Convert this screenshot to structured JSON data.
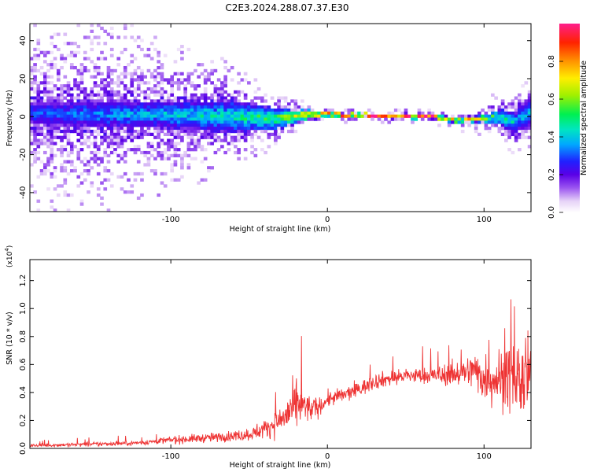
{
  "title": "C2E3.2024.288.07.37.E30",
  "chart_data": [
    {
      "type": "heatmap",
      "xlabel": "Height of straight line (km)",
      "ylabel": "Frequency (Hz)",
      "xlim": [
        -190,
        130
      ],
      "ylim": [
        -50,
        49
      ],
      "xticks": [
        -100,
        0,
        100
      ],
      "xtick_labels": [
        "-100",
        "0",
        "100"
      ],
      "yticks": [
        -40,
        -20,
        0,
        20,
        40
      ],
      "ytick_labels": [
        "-40",
        "-20",
        "0",
        "20",
        "40"
      ],
      "colorbar": {
        "label": "Normalized spectral amplitude",
        "range": [
          0.0,
          1.0
        ],
        "ticks": [
          0.0,
          0.2,
          0.4,
          0.6,
          0.8
        ],
        "tick_labels": [
          "0.0",
          "0.2",
          "0.4",
          "0.6",
          "0.8"
        ]
      },
      "trace": {
        "x": [
          -190,
          -150,
          -100,
          -60,
          -30,
          -15,
          0,
          20,
          50,
          70,
          80,
          90,
          100,
          110,
          120,
          130
        ],
        "center_freq": [
          2,
          1,
          1,
          0,
          -1,
          1,
          1,
          1,
          0,
          0,
          -2,
          -2,
          -1,
          0,
          -3,
          2
        ],
        "core_halfwidth": [
          6,
          7,
          7,
          8,
          5,
          2.5,
          1.2,
          1,
          1,
          1,
          1.2,
          1.2,
          2,
          4,
          6,
          7
        ],
        "peak_amplitude": [
          0.3,
          0.35,
          0.4,
          0.45,
          0.55,
          0.75,
          0.95,
          0.95,
          0.95,
          1.0,
          0.85,
          0.8,
          0.6,
          0.5,
          0.4,
          0.35
        ],
        "scatter_spread": [
          50,
          45,
          35,
          20,
          10,
          5,
          3,
          3,
          3,
          3,
          4,
          5,
          7,
          10,
          12,
          12
        ]
      }
    },
    {
      "type": "line",
      "xlabel": "Height of straight line (km)",
      "ylabel": "SNR (10 * v/v)",
      "y_multiplier_label": "(x10",
      "y_multiplier_exp": "4",
      "y_multiplier_close": ")",
      "xlim": [
        -190,
        130
      ],
      "ylim": [
        0,
        1.35
      ],
      "xticks": [
        -100,
        0,
        100
      ],
      "xtick_labels": [
        "-100",
        "0",
        "100"
      ],
      "yticks": [
        0.0,
        0.2,
        0.4,
        0.6,
        0.8,
        1.0,
        1.2
      ],
      "ytick_labels": [
        "0.0",
        "0.2",
        "0.4",
        "0.6",
        "0.8",
        "1.0",
        "1.2"
      ],
      "color": "#ee3333",
      "envelope": {
        "x": [
          -190,
          -150,
          -120,
          -100,
          -70,
          -50,
          -40,
          -30,
          -25,
          -20,
          -15,
          -10,
          -5,
          0,
          10,
          20,
          30,
          40,
          50,
          60,
          70,
          80,
          90,
          95,
          100,
          110,
          120,
          125,
          130
        ],
        "mean": [
          0.02,
          0.03,
          0.04,
          0.06,
          0.08,
          0.1,
          0.14,
          0.2,
          0.25,
          0.3,
          0.3,
          0.28,
          0.3,
          0.35,
          0.38,
          0.42,
          0.48,
          0.5,
          0.52,
          0.52,
          0.52,
          0.53,
          0.55,
          0.56,
          0.5,
          0.5,
          0.5,
          0.48,
          0.5
        ],
        "spread": [
          0.02,
          0.03,
          0.03,
          0.05,
          0.06,
          0.08,
          0.12,
          0.18,
          0.28,
          0.3,
          0.22,
          0.15,
          0.12,
          0.1,
          0.1,
          0.1,
          0.1,
          0.1,
          0.1,
          0.1,
          0.12,
          0.15,
          0.2,
          0.25,
          0.3,
          0.38,
          0.45,
          0.55,
          0.5
        ]
      }
    }
  ]
}
